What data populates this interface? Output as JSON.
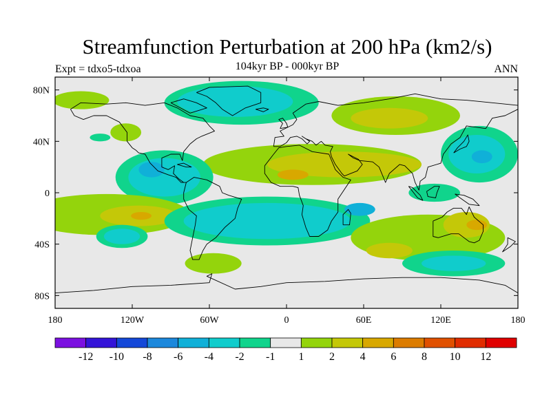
{
  "title": "Streamfunction Perturbation at 200 hPa (km2/s)",
  "subtitle": "104kyr BP - 000kyr BP",
  "left_label": "Expt = tdxo5-tdxoa",
  "right_label": "ANN",
  "map": {
    "lon_range": [
      -180,
      180
    ],
    "lat_range": [
      -90,
      90
    ],
    "background_color": "#e8e8e8",
    "x_ticks": [
      {
        "lon": -180,
        "label": "180"
      },
      {
        "lon": -120,
        "label": "120W"
      },
      {
        "lon": -60,
        "label": "60W"
      },
      {
        "lon": 0,
        "label": "0"
      },
      {
        "lon": 60,
        "label": "60E"
      },
      {
        "lon": 120,
        "label": "120E"
      },
      {
        "lon": 180,
        "label": "180"
      }
    ],
    "y_ticks": [
      {
        "lat": 80,
        "label": "80N"
      },
      {
        "lat": 40,
        "label": "40N"
      },
      {
        "lat": 0,
        "label": "0"
      },
      {
        "lat": -40,
        "label": "40S"
      },
      {
        "lat": -80,
        "label": "80S"
      }
    ]
  },
  "colorbar": {
    "colors": [
      "#7b10e0",
      "#3414d8",
      "#1448d8",
      "#1c88dc",
      "#10b0d8",
      "#10cccc",
      "#10d48c",
      "#e8e8e8",
      "#94d40c",
      "#c4c808",
      "#d8a800",
      "#dc7c00",
      "#e05000",
      "#e02c00",
      "#e00000"
    ],
    "labels": [
      "-12",
      "-10",
      "-8",
      "-6",
      "-4",
      "-2",
      "-1",
      "1",
      "2",
      "4",
      "6",
      "8",
      "10",
      "12"
    ]
  },
  "field_regions": [
    {
      "level": "2",
      "color": "#94d40c",
      "lon": -160,
      "lat": 72,
      "rlon": 22,
      "rlat": 7
    },
    {
      "level": "-1",
      "color": "#10d48c",
      "lon": -35,
      "lat": 70,
      "rlon": 60,
      "rlat": 17
    },
    {
      "level": "-2",
      "color": "#10cccc",
      "lon": -40,
      "lat": 71,
      "rlon": 45,
      "rlat": 12
    },
    {
      "level": "2",
      "color": "#94d40c",
      "lon": 85,
      "lat": 60,
      "rlon": 50,
      "rlat": 15
    },
    {
      "level": "4",
      "color": "#c4c808",
      "lon": 80,
      "lat": 58,
      "rlon": 30,
      "rlat": 8
    },
    {
      "level": "-1",
      "color": "#10d48c",
      "lon": -145,
      "lat": 43,
      "rlon": 8,
      "rlat": 3
    },
    {
      "level": "2",
      "color": "#94d40c",
      "lon": -125,
      "lat": 47,
      "rlon": 12,
      "rlat": 7
    },
    {
      "level": "2",
      "color": "#94d40c",
      "lon": 20,
      "lat": 22,
      "rlon": 85,
      "rlat": 16
    },
    {
      "level": "4",
      "color": "#c4c808",
      "lon": 45,
      "lat": 22,
      "rlon": 60,
      "rlat": 10
    },
    {
      "level": "6",
      "color": "#d8a800",
      "lon": 5,
      "lat": 14,
      "rlon": 12,
      "rlat": 4
    },
    {
      "level": "-1",
      "color": "#10d48c",
      "lon": -95,
      "lat": 12,
      "rlon": 38,
      "rlat": 21
    },
    {
      "level": "-2",
      "color": "#10cccc",
      "lon": -95,
      "lat": 12,
      "rlon": 28,
      "rlat": 15
    },
    {
      "level": "-4",
      "color": "#10b0d8",
      "lon": -105,
      "lat": 18,
      "rlon": 10,
      "rlat": 6
    },
    {
      "level": "-1",
      "color": "#10d48c",
      "lon": 150,
      "lat": 30,
      "rlon": 30,
      "rlat": 22
    },
    {
      "level": "-2",
      "color": "#10cccc",
      "lon": 148,
      "lat": 30,
      "rlon": 22,
      "rlat": 15
    },
    {
      "level": "-4",
      "color": "#10b0d8",
      "lon": 152,
      "lat": 28,
      "rlon": 8,
      "rlat": 5
    },
    {
      "level": "-1",
      "color": "#10d48c",
      "lon": 115,
      "lat": 0,
      "rlon": 20,
      "rlat": 7
    },
    {
      "level": "2",
      "color": "#94d40c",
      "lon": -140,
      "lat": -17,
      "rlon": 65,
      "rlat": 16
    },
    {
      "level": "4",
      "color": "#c4c808",
      "lon": -115,
      "lat": -18,
      "rlon": 30,
      "rlat": 8
    },
    {
      "level": "6",
      "color": "#d8a800",
      "lon": -113,
      "lat": -18,
      "rlon": 8,
      "rlat": 3
    },
    {
      "level": "-1",
      "color": "#10d48c",
      "lon": -15,
      "lat": -22,
      "rlon": 80,
      "rlat": 19
    },
    {
      "level": "-2",
      "color": "#10cccc",
      "lon": -15,
      "lat": -22,
      "rlon": 65,
      "rlat": 14
    },
    {
      "level": "-4",
      "color": "#10b0d8",
      "lon": 57,
      "lat": -13,
      "rlon": 12,
      "rlat": 5
    },
    {
      "level": "-1",
      "color": "#10d48c",
      "lon": -128,
      "lat": -34,
      "rlon": 20,
      "rlat": 9
    },
    {
      "level": "-2",
      "color": "#10cccc",
      "lon": -128,
      "lat": -34,
      "rlon": 14,
      "rlat": 6
    },
    {
      "level": "2",
      "color": "#94d40c",
      "lon": 110,
      "lat": -35,
      "rlon": 60,
      "rlat": 18
    },
    {
      "level": "4",
      "color": "#c4c808",
      "lon": 140,
      "lat": -25,
      "rlon": 18,
      "rlat": 10
    },
    {
      "level": "6",
      "color": "#d8a800",
      "lon": 148,
      "lat": -25,
      "rlon": 8,
      "rlat": 4
    },
    {
      "level": "4",
      "color": "#c4c808",
      "lon": 80,
      "lat": -45,
      "rlon": 18,
      "rlat": 6
    },
    {
      "level": "-1",
      "color": "#10d48c",
      "lon": 130,
      "lat": -55,
      "rlon": 40,
      "rlat": 10
    },
    {
      "level": "-2",
      "color": "#10cccc",
      "lon": 130,
      "lat": -55,
      "rlon": 25,
      "rlat": 6
    },
    {
      "level": "2",
      "color": "#94d40c",
      "lon": -57,
      "lat": -55,
      "rlon": 22,
      "rlat": 8
    }
  ],
  "coastlines": [
    {
      "name": "north-america",
      "points": [
        [
          -168,
          65
        ],
        [
          -160,
          70
        ],
        [
          -140,
          69
        ],
        [
          -125,
          70
        ],
        [
          -110,
          68
        ],
        [
          -95,
          70
        ],
        [
          -85,
          66
        ],
        [
          -80,
          63
        ],
        [
          -75,
          60
        ],
        [
          -65,
          58
        ],
        [
          -60,
          52
        ],
        [
          -56,
          48
        ],
        [
          -66,
          44
        ],
        [
          -70,
          42
        ],
        [
          -75,
          38
        ],
        [
          -80,
          32
        ],
        [
          -81,
          25
        ],
        [
          -83,
          30
        ],
        [
          -90,
          30
        ],
        [
          -97,
          27
        ],
        [
          -97,
          20
        ],
        [
          -92,
          18
        ],
        [
          -87,
          21
        ],
        [
          -88,
          15
        ],
        [
          -84,
          11
        ],
        [
          -80,
          8
        ],
        [
          -78,
          8
        ],
        [
          -82,
          8
        ],
        [
          -86,
          12
        ],
        [
          -92,
          14
        ],
        [
          -100,
          17
        ],
        [
          -106,
          23
        ],
        [
          -110,
          30
        ],
        [
          -115,
          31
        ],
        [
          -117,
          33
        ],
        [
          -120,
          35
        ],
        [
          -124,
          40
        ],
        [
          -124,
          47
        ],
        [
          -130,
          55
        ],
        [
          -140,
          60
        ],
        [
          -150,
          60
        ],
        [
          -158,
          57
        ],
        [
          -165,
          60
        ],
        [
          -168,
          65
        ]
      ]
    },
    {
      "name": "greenland",
      "points": [
        [
          -70,
          78
        ],
        [
          -60,
          82
        ],
        [
          -30,
          83
        ],
        [
          -20,
          78
        ],
        [
          -20,
          70
        ],
        [
          -32,
          66
        ],
        [
          -42,
          60
        ],
        [
          -50,
          65
        ],
        [
          -55,
          70
        ],
        [
          -62,
          75
        ],
        [
          -70,
          78
        ]
      ]
    },
    {
      "name": "south-america",
      "points": [
        [
          -78,
          8
        ],
        [
          -72,
          12
        ],
        [
          -62,
          10
        ],
        [
          -52,
          5
        ],
        [
          -50,
          0
        ],
        [
          -45,
          -2
        ],
        [
          -35,
          -5
        ],
        [
          -38,
          -12
        ],
        [
          -40,
          -20
        ],
        [
          -48,
          -27
        ],
        [
          -55,
          -35
        ],
        [
          -62,
          -40
        ],
        [
          -65,
          -45
        ],
        [
          -68,
          -52
        ],
        [
          -73,
          -52
        ],
        [
          -75,
          -45
        ],
        [
          -73,
          -35
        ],
        [
          -71,
          -25
        ],
        [
          -70,
          -18
        ],
        [
          -76,
          -13
        ],
        [
          -80,
          -5
        ],
        [
          -80,
          0
        ],
        [
          -78,
          8
        ]
      ]
    },
    {
      "name": "eurasia",
      "points": [
        [
          -10,
          36
        ],
        [
          -9,
          43
        ],
        [
          -2,
          44
        ],
        [
          -5,
          48
        ],
        [
          5,
          53
        ],
        [
          8,
          57
        ],
        [
          5,
          62
        ],
        [
          15,
          69
        ],
        [
          25,
          71
        ],
        [
          40,
          68
        ],
        [
          60,
          70
        ],
        [
          80,
          73
        ],
        [
          100,
          77
        ],
        [
          120,
          73
        ],
        [
          140,
          72
        ],
        [
          160,
          70
        ],
        [
          180,
          68
        ],
        [
          180,
          65
        ],
        [
          170,
          60
        ],
        [
          160,
          58
        ],
        [
          155,
          50
        ],
        [
          140,
          52
        ],
        [
          135,
          43
        ],
        [
          128,
          38
        ],
        [
          122,
          30
        ],
        [
          120,
          23
        ],
        [
          110,
          20
        ],
        [
          108,
          12
        ],
        [
          104,
          9
        ],
        [
          103,
          2
        ],
        [
          100,
          8
        ],
        [
          98,
          15
        ],
        [
          92,
          21
        ],
        [
          88,
          22
        ],
        [
          80,
          15
        ],
        [
          77,
          8
        ],
        [
          72,
          20
        ],
        [
          67,
          24
        ],
        [
          57,
          25
        ],
        [
          52,
          27
        ],
        [
          48,
          30
        ],
        [
          56,
          26
        ],
        [
          59,
          22
        ],
        [
          55,
          17
        ],
        [
          45,
          13
        ],
        [
          43,
          15
        ],
        [
          38,
          22
        ],
        [
          35,
          28
        ],
        [
          34,
          32
        ],
        [
          36,
          36
        ],
        [
          30,
          37
        ],
        [
          27,
          40
        ],
        [
          23,
          37
        ],
        [
          20,
          40
        ],
        [
          15,
          42
        ],
        [
          12,
          44
        ],
        [
          18,
          40
        ],
        [
          16,
          38
        ],
        [
          12,
          42
        ],
        [
          8,
          44
        ],
        [
          3,
          43
        ],
        [
          0,
          39
        ],
        [
          -5,
          36
        ],
        [
          -10,
          36
        ]
      ]
    },
    {
      "name": "africa",
      "points": [
        [
          -17,
          21
        ],
        [
          -17,
          15
        ],
        [
          -12,
          8
        ],
        [
          -5,
          5
        ],
        [
          5,
          5
        ],
        [
          9,
          4
        ],
        [
          10,
          -2
        ],
        [
          13,
          -10
        ],
        [
          12,
          -17
        ],
        [
          15,
          -27
        ],
        [
          18,
          -34
        ],
        [
          25,
          -34
        ],
        [
          32,
          -29
        ],
        [
          35,
          -22
        ],
        [
          40,
          -15
        ],
        [
          40,
          -5
        ],
        [
          50,
          10
        ],
        [
          44,
          12
        ],
        [
          38,
          18
        ],
        [
          33,
          30
        ],
        [
          20,
          32
        ],
        [
          10,
          37
        ],
        [
          0,
          36
        ],
        [
          -6,
          35
        ],
        [
          -10,
          30
        ],
        [
          -17,
          21
        ]
      ]
    },
    {
      "name": "australia",
      "points": [
        [
          114,
          -22
        ],
        [
          114,
          -34
        ],
        [
          118,
          -35
        ],
        [
          128,
          -32
        ],
        [
          134,
          -32
        ],
        [
          138,
          -35
        ],
        [
          142,
          -38
        ],
        [
          146,
          -39
        ],
        [
          150,
          -37
        ],
        [
          153,
          -30
        ],
        [
          153,
          -25
        ],
        [
          146,
          -19
        ],
        [
          142,
          -11
        ],
        [
          140,
          -17
        ],
        [
          136,
          -12
        ],
        [
          130,
          -12
        ],
        [
          125,
          -15
        ],
        [
          121,
          -19
        ],
        [
          114,
          -22
        ]
      ]
    },
    {
      "name": "antarctica",
      "points": [
        [
          -180,
          -78
        ],
        [
          -150,
          -76
        ],
        [
          -120,
          -73
        ],
        [
          -90,
          -72
        ],
        [
          -60,
          -70
        ],
        [
          -58,
          -63
        ],
        [
          -62,
          -65
        ],
        [
          -40,
          -75
        ],
        [
          -20,
          -73
        ],
        [
          0,
          -70
        ],
        [
          30,
          -69
        ],
        [
          60,
          -67
        ],
        [
          90,
          -66
        ],
        [
          120,
          -66
        ],
        [
          150,
          -68
        ],
        [
          170,
          -72
        ],
        [
          180,
          -78
        ]
      ]
    },
    {
      "name": "madagascar",
      "points": [
        [
          44,
          -25
        ],
        [
          49,
          -25
        ],
        [
          50,
          -16
        ],
        [
          48,
          -13
        ],
        [
          44,
          -17
        ],
        [
          44,
          -25
        ]
      ]
    },
    {
      "name": "uk",
      "points": [
        [
          -5,
          50
        ],
        [
          1,
          51
        ],
        [
          0,
          54
        ],
        [
          -3,
          58
        ],
        [
          -6,
          57
        ],
        [
          -3,
          54
        ],
        [
          -5,
          50
        ]
      ]
    },
    {
      "name": "japan",
      "points": [
        [
          130,
          31
        ],
        [
          135,
          34
        ],
        [
          140,
          36
        ],
        [
          142,
          40
        ],
        [
          141,
          45
        ],
        [
          138,
          40
        ],
        [
          133,
          35
        ],
        [
          130,
          31
        ]
      ]
    },
    {
      "name": "borneo",
      "points": [
        [
          109,
          1
        ],
        [
          115,
          5
        ],
        [
          119,
          5
        ],
        [
          117,
          0
        ],
        [
          116,
          -4
        ],
        [
          110,
          -3
        ],
        [
          109,
          1
        ]
      ]
    },
    {
      "name": "sumatra",
      "points": [
        [
          95,
          5
        ],
        [
          98,
          4
        ],
        [
          104,
          -2
        ],
        [
          106,
          -6
        ],
        [
          102,
          -4
        ],
        [
          95,
          5
        ]
      ]
    },
    {
      "name": "new-guinea",
      "points": [
        [
          131,
          -1
        ],
        [
          138,
          -2
        ],
        [
          145,
          -5
        ],
        [
          150,
          -10
        ],
        [
          142,
          -9
        ],
        [
          135,
          -4
        ],
        [
          131,
          -1
        ]
      ]
    },
    {
      "name": "new-zealand",
      "points": [
        [
          172,
          -35
        ],
        [
          178,
          -38
        ],
        [
          174,
          -42
        ],
        [
          168,
          -46
        ],
        [
          172,
          -40
        ],
        [
          172,
          -35
        ]
      ]
    },
    {
      "name": "iceland",
      "points": [
        [
          -24,
          65
        ],
        [
          -18,
          66
        ],
        [
          -14,
          65
        ],
        [
          -18,
          63
        ],
        [
          -24,
          65
        ]
      ]
    },
    {
      "name": "cuba",
      "points": [
        [
          -85,
          22
        ],
        [
          -80,
          23
        ],
        [
          -74,
          20
        ],
        [
          -78,
          20
        ],
        [
          -85,
          22
        ]
      ]
    },
    {
      "name": "baffin",
      "points": [
        [
          -90,
          70
        ],
        [
          -80,
          73
        ],
        [
          -70,
          70
        ],
        [
          -62,
          66
        ],
        [
          -75,
          62
        ],
        [
          -90,
          70
        ]
      ]
    }
  ]
}
